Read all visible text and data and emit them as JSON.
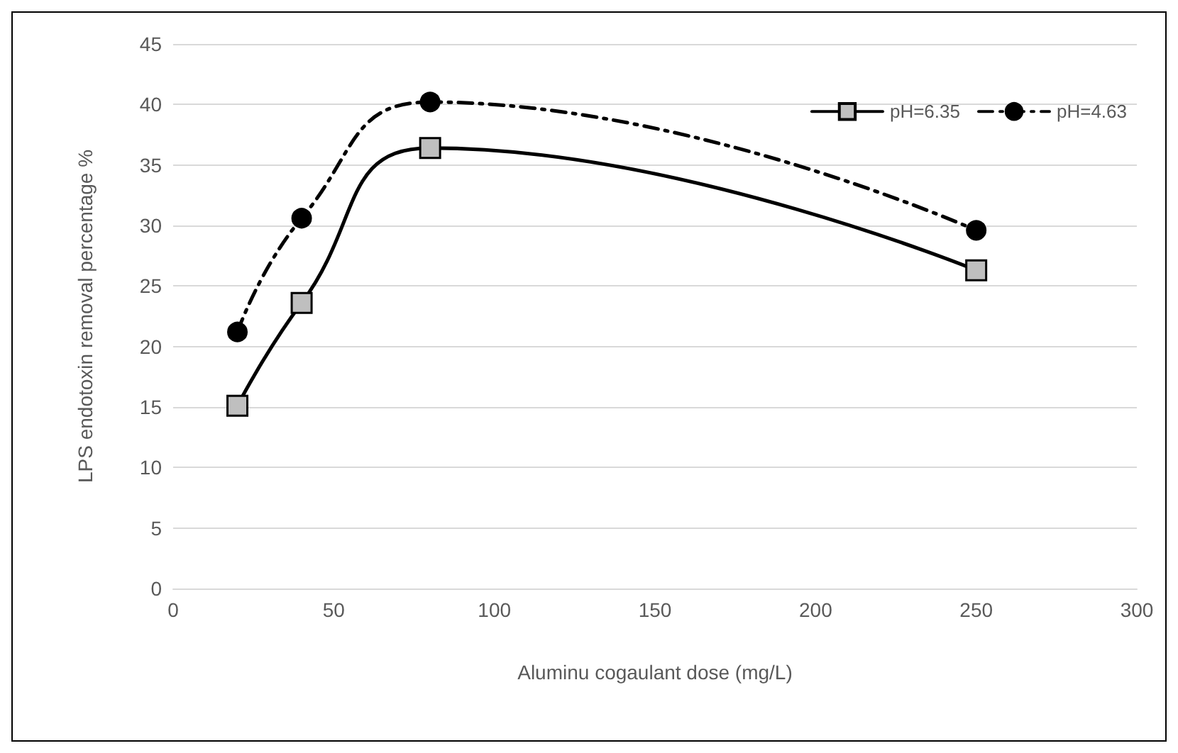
{
  "chart_data": {
    "type": "line",
    "xlabel": "Aluminu cogaulant dose (mg/L)",
    "ylabel": "LPS endotoxin removal percentage %",
    "x": [
      20,
      40,
      80,
      250
    ],
    "series": [
      {
        "name": "pH=6.35",
        "color": "#000000",
        "marker": "square",
        "line_style": "solid",
        "values": [
          15.1,
          23.6,
          36.4,
          26.3
        ]
      },
      {
        "name": "pH=4.63",
        "color": "#000000",
        "marker": "circle",
        "line_style": "dashed",
        "values": [
          21.2,
          30.6,
          40.2,
          29.6
        ]
      }
    ],
    "xlim": [
      0,
      300
    ],
    "xticks": [
      0,
      50,
      100,
      150,
      200,
      250,
      300
    ],
    "ylim": [
      0,
      45
    ],
    "yticks": [
      0,
      5,
      10,
      15,
      20,
      25,
      30,
      35,
      40,
      45
    ],
    "grid": "y",
    "legend": "top right"
  }
}
